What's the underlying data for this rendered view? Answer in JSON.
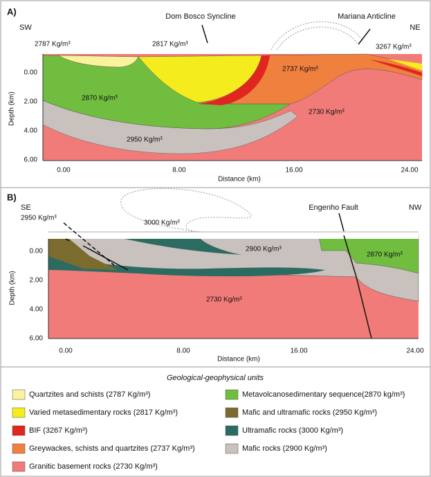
{
  "panel_a": {
    "label": "A)",
    "left_dir": "SW",
    "right_dir": "NE",
    "annotations": [
      "Dom Bosco Syncline",
      "Mariana Anticline"
    ],
    "units": [
      "2787 Kg/m³",
      "2817 Kg/m³",
      "3267 Kg/m³",
      "2737 Kg/m³",
      "2870 Kg/m³",
      "2730 Kg/m³",
      "2950 Kg/m³"
    ],
    "y_axis_label": "Depth (km)",
    "x_axis_label": "Distance (km)",
    "yticks": [
      "0.00",
      "2.00",
      "4.00",
      "6.00"
    ],
    "xticks": [
      "0.00",
      "8.00",
      "16.00",
      "24.00"
    ]
  },
  "panel_b": {
    "label": "B)",
    "left_dir": "SE",
    "right_dir": "NW",
    "annotations": [
      "Engenho Fault"
    ],
    "units": [
      "2950 Kg/m³",
      "3000 Kg/m³",
      "2900 Kg/m³",
      "2870 Kg/m³",
      "2730 Kg/m³"
    ],
    "y_axis_label": "Depth (km)",
    "x_axis_label": "Distance (km)",
    "yticks": [
      "0.00",
      "2.00",
      "4.00",
      "6.00"
    ],
    "xticks": [
      "0.00",
      "8.00",
      "16.00",
      "24.00"
    ]
  },
  "legend": {
    "title": "Geological-geophysical units",
    "items": [
      {
        "label": "Quartzites and schists (2787 Kg/m³)",
        "color": "#faf29c"
      },
      {
        "label": "Varied metasedimentary rocks (2817 Kg/m³)",
        "color": "#f4ec1c"
      },
      {
        "label": "BIF (3267 Kg/m³)",
        "color": "#e1251f"
      },
      {
        "label": "Greywackes, schists and quartzites (2737 Kg/m³)",
        "color": "#f0803e"
      },
      {
        "label": "Granitic basement rocks (2730 Kg/m³)",
        "color": "#f07b79"
      },
      {
        "label": "Metavolcanosedimentary sequence(2870 kg/m³)",
        "color": "#71bd3f"
      },
      {
        "label": "Mafic and ultramafic rocks (2950 Kg/m³)",
        "color": "#7b6b2e"
      },
      {
        "label": "Ultramafic rocks (3000 Kg/m³)",
        "color": "#2c6b61"
      },
      {
        "label": "Mafic rocks (2900 Kg/m³)",
        "color": "#c8c1bd"
      }
    ]
  }
}
